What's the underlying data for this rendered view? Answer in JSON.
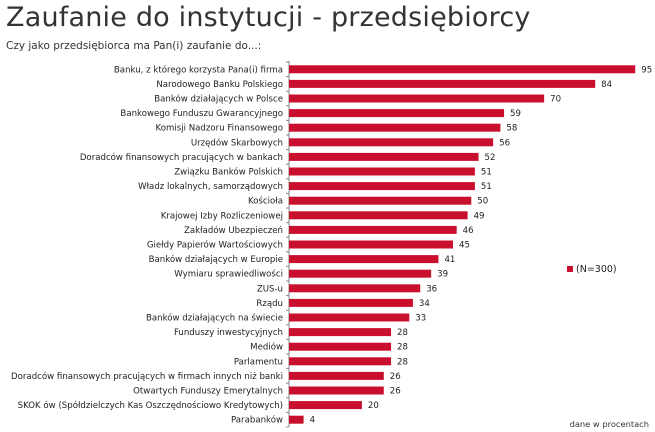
{
  "title": "Zaufanie do instytucji - przedsiębiorcy",
  "subtitle": "Czy jako przedsiębiorca ma Pan(i) zaufanie do...:",
  "note": "dane w procentach",
  "chart_data": {
    "type": "bar",
    "orientation": "horizontal",
    "title": "Zaufanie do instytucji - przedsiębiorcy",
    "categories": [
      "Banku, z którego korzysta Pana(i) firma",
      "Narodowego Banku Polskiego",
      "Banków działających w Polsce",
      "Bankowego Funduszu Gwarancyjnego",
      "Komisji Nadzoru Finansowego",
      "Urzędów Skarbowych",
      "Doradców finansowych pracujących w bankach",
      "Związku Banków Polskich",
      "Władz lokalnych, samorządowych",
      "Kościoła",
      "Krajowej Izby Rozliczeniowej",
      "Zakładów Ubezpieczeń",
      "Giełdy Papierów Wartościowych",
      "Banków działających w Europie",
      "Wymiaru sprawiedliwości",
      "ZUS-u",
      "Rządu",
      "Banków działających na świecie",
      "Funduszy inwestycyjnych",
      "Mediów",
      "Parlamentu",
      "Doradców finansowych pracujących w firmach innych niż banki",
      "Otwartych Funduszy Emerytalnych",
      "SKOK ów (Spółdzielczych Kas Oszczędnościowo Kredytowych)",
      "Parabanków"
    ],
    "series": [
      {
        "name": "(N=300)",
        "values": [
          95,
          84,
          70,
          59,
          58,
          56,
          52,
          51,
          51,
          50,
          49,
          46,
          45,
          41,
          39,
          36,
          34,
          33,
          28,
          28,
          28,
          26,
          26,
          20,
          4
        ]
      }
    ],
    "xlim": [
      0,
      100
    ],
    "legend": "right",
    "color": "#c8102e",
    "unit": "percent"
  }
}
